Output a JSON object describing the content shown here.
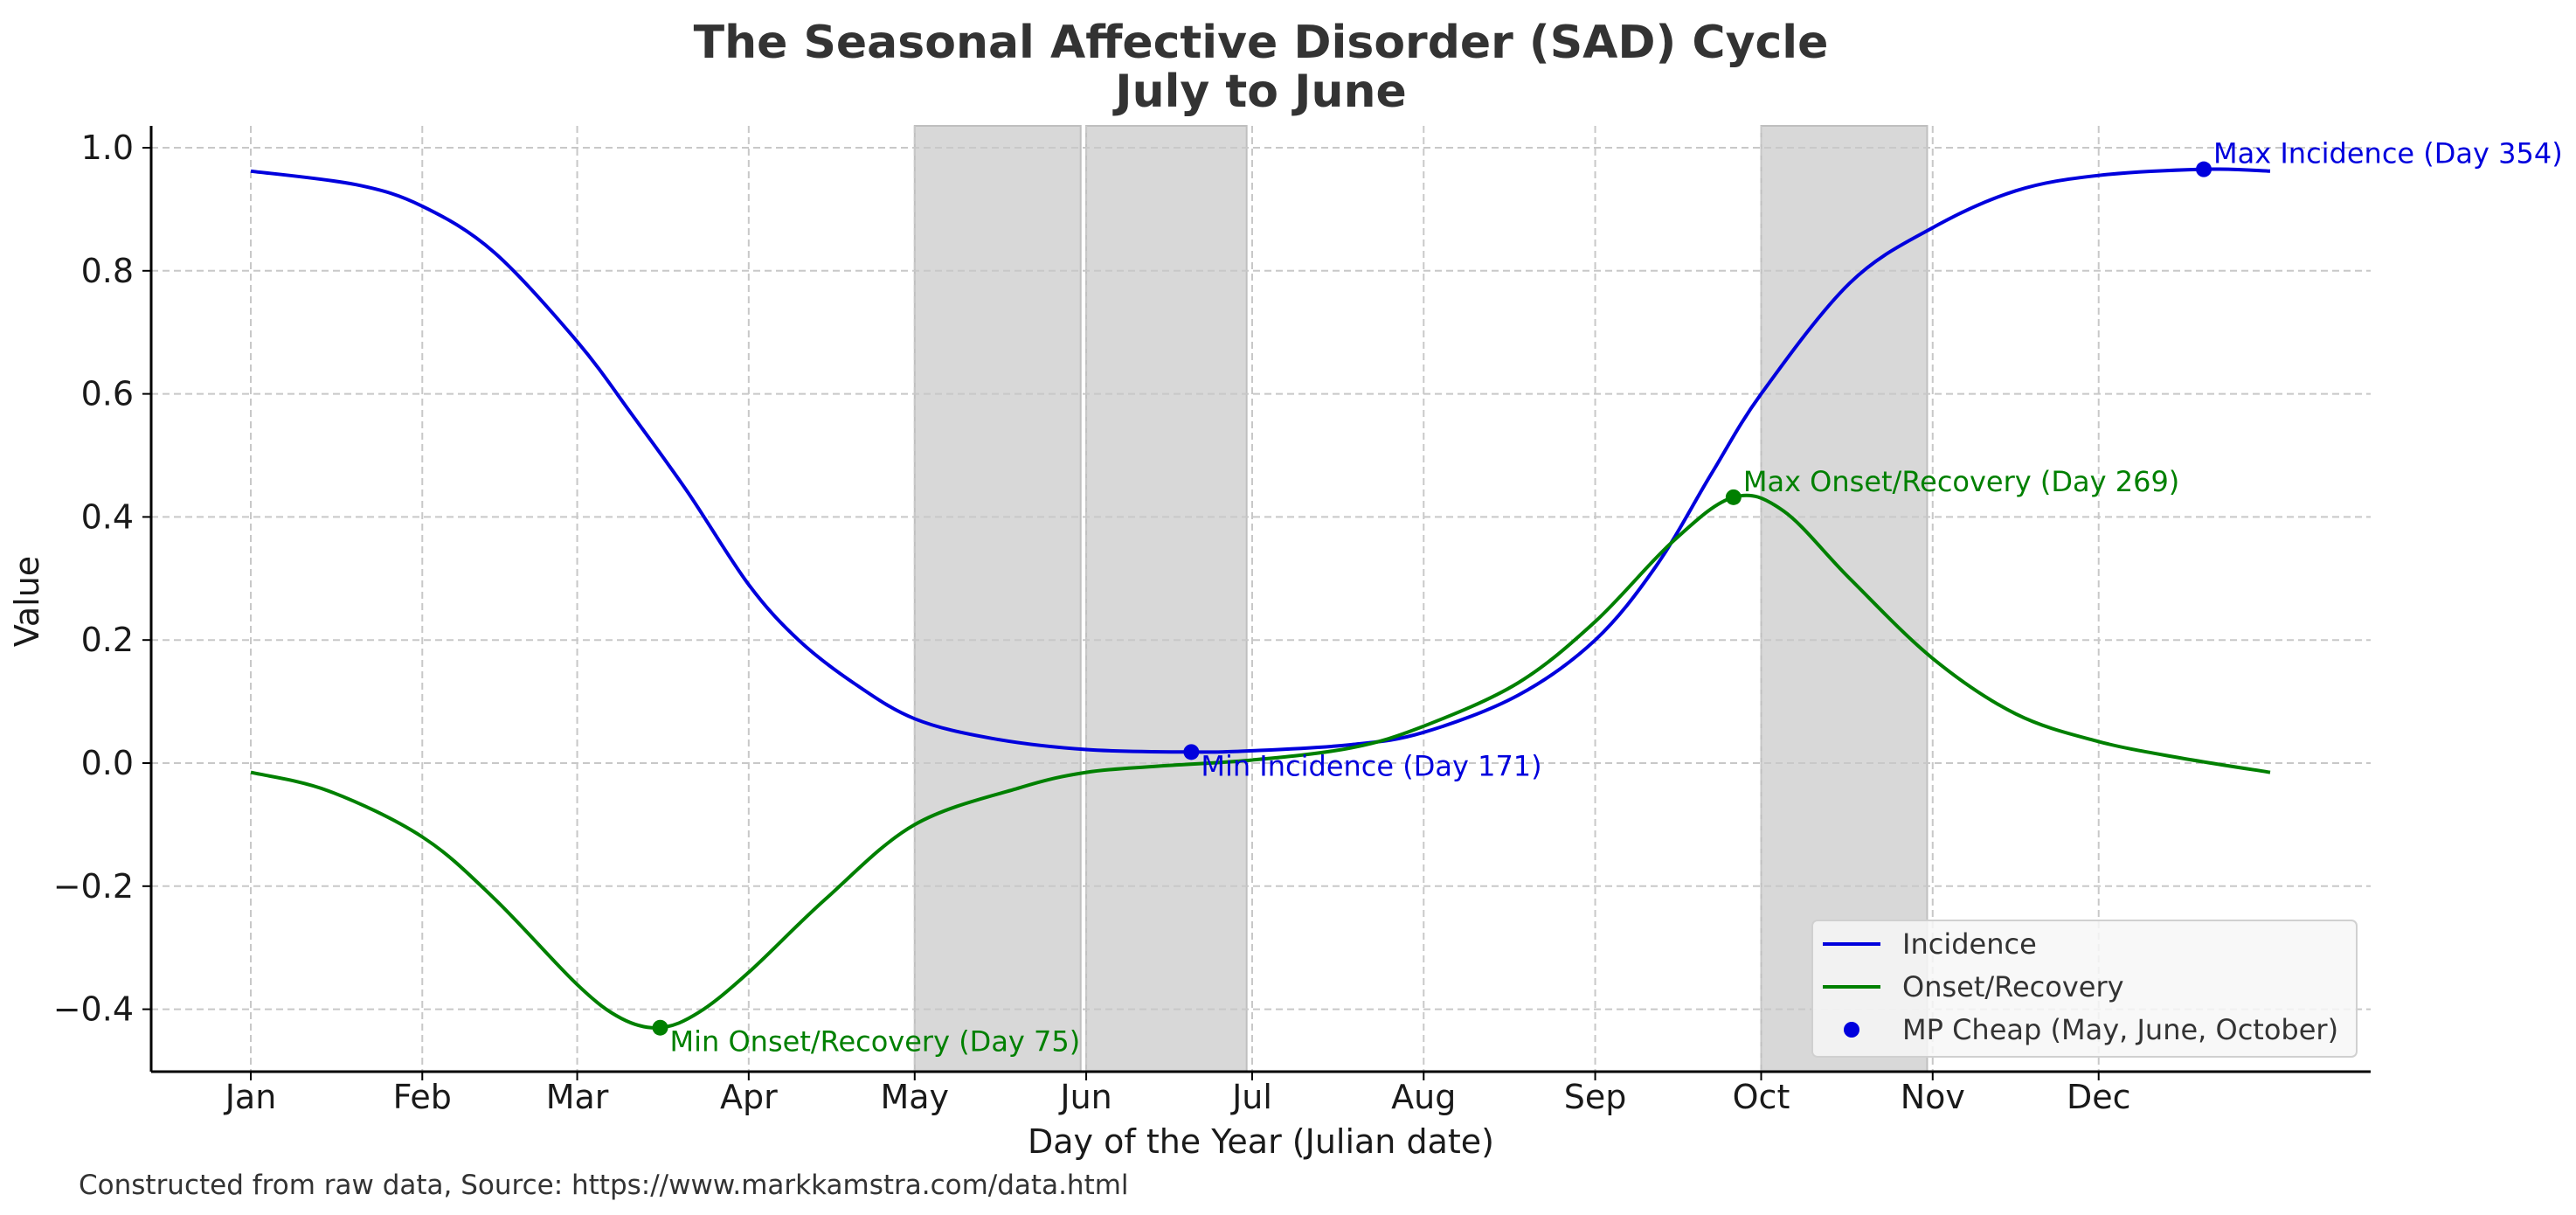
{
  "chart_data": {
    "type": "line",
    "title": "The Seasonal Affective Disorder (SAD) Cycle",
    "subtitle": "July to June",
    "xlabel": "Day of the Year (Julian date)",
    "ylabel": "Value",
    "xlim": [
      -20,
      375
    ],
    "ylim": [
      -0.5,
      1.035
    ],
    "grid": true,
    "x_ticks": [
      {
        "day": 1,
        "label": "Jan"
      },
      {
        "day": 32,
        "label": "Feb"
      },
      {
        "day": 60,
        "label": "Mar"
      },
      {
        "day": 91,
        "label": "Apr"
      },
      {
        "day": 121,
        "label": "May"
      },
      {
        "day": 152,
        "label": "Jun"
      },
      {
        "day": 182,
        "label": "Jul"
      },
      {
        "day": 213,
        "label": "Aug"
      },
      {
        "day": 244,
        "label": "Sep"
      },
      {
        "day": 274,
        "label": "Oct"
      },
      {
        "day": 305,
        "label": "Nov"
      },
      {
        "day": 335,
        "label": "Dec"
      }
    ],
    "y_ticks": [
      {
        "value": 1.0,
        "label": "1.0"
      },
      {
        "value": 0.8,
        "label": "0.8"
      },
      {
        "value": 0.6,
        "label": "0.6"
      },
      {
        "value": 0.4,
        "label": "0.4"
      },
      {
        "value": 0.2,
        "label": "0.2"
      },
      {
        "value": 0.0,
        "label": "0.0"
      },
      {
        "value": -0.2,
        "label": "−0.2"
      },
      {
        "value": -0.4,
        "label": "−0.4"
      }
    ],
    "shaded_regions": [
      {
        "name": "May",
        "start": 121,
        "end": 151
      },
      {
        "name": "June",
        "start": 152,
        "end": 181
      },
      {
        "name": "October",
        "start": 274,
        "end": 304
      }
    ],
    "series": [
      {
        "name": "Incidence",
        "color": "#0000dd",
        "x": [
          1,
          20,
          32,
          45,
          60,
          70,
          80,
          91,
          100,
          110,
          121,
          135,
          152,
          171,
          182,
          200,
          213,
          230,
          244,
          255,
          265,
          274,
          290,
          305,
          320,
          335,
          354,
          366
        ],
        "y": [
          0.962,
          0.94,
          0.905,
          0.83,
          0.685,
          0.565,
          0.44,
          0.29,
          0.2,
          0.13,
          0.072,
          0.04,
          0.022,
          0.018,
          0.02,
          0.03,
          0.05,
          0.11,
          0.2,
          0.32,
          0.47,
          0.6,
          0.78,
          0.87,
          0.93,
          0.955,
          0.965,
          0.962
        ]
      },
      {
        "name": "Onset/Recovery",
        "color": "#008000",
        "x": [
          1,
          15,
          32,
          45,
          60,
          68,
          75,
          82,
          91,
          105,
          121,
          140,
          152,
          165,
          182,
          200,
          213,
          230,
          244,
          258,
          269,
          278,
          290,
          305,
          320,
          335,
          350,
          366
        ],
        "y": [
          -0.015,
          -0.045,
          -0.12,
          -0.22,
          -0.36,
          -0.415,
          -0.43,
          -0.405,
          -0.34,
          -0.22,
          -0.1,
          -0.04,
          -0.015,
          -0.005,
          0.005,
          0.025,
          0.06,
          0.13,
          0.23,
          0.36,
          0.432,
          0.41,
          0.3,
          0.17,
          0.08,
          0.035,
          0.008,
          -0.015
        ]
      }
    ],
    "annotations": [
      {
        "day": 354,
        "value": 0.965,
        "text": "Max Incidence (Day 354)",
        "series": "Incidence"
      },
      {
        "day": 171,
        "value": 0.018,
        "text": "Min Incidence (Day 171)",
        "series": "Incidence"
      },
      {
        "day": 269,
        "value": 0.432,
        "text": "Max Onset/Recovery (Day 269)",
        "series": "Onset/Recovery"
      },
      {
        "day": 75,
        "value": -0.43,
        "text": "Min Onset/Recovery (Day 75)",
        "series": "Onset/Recovery"
      }
    ],
    "legend": {
      "position": "lower-right",
      "entries": [
        {
          "label": "Incidence",
          "kind": "line",
          "color": "#0000dd"
        },
        {
          "label": "Onset/Recovery",
          "kind": "line",
          "color": "#008000"
        },
        {
          "label": "MP Cheap (May, June, October)",
          "kind": "marker",
          "color": "#0000dd"
        }
      ]
    },
    "source_note": "Constructed from raw data, Source: https://www.markkamstra.com/data.html"
  }
}
